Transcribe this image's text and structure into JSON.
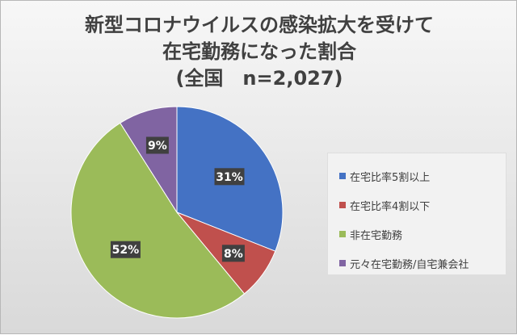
{
  "chart_data": {
    "type": "pie",
    "title_lines": [
      "新型コロナウイルスの感染拡大を受けて",
      "在宅勤務になった割合",
      "(全国　n=2,027)"
    ],
    "slices": [
      {
        "label": "在宅比率5割以上",
        "value": 31,
        "data_label": "31%",
        "color": "#4472c4"
      },
      {
        "label": "在宅比率4割以下",
        "value": 8,
        "data_label": "8%",
        "color": "#c0504d"
      },
      {
        "label": "非在宅勤務",
        "value": 52,
        "data_label": "52%",
        "color": "#9bbb59"
      },
      {
        "label": "元々在宅勤務/自宅兼会社",
        "value": 9,
        "data_label": "9%",
        "color": "#8064a2"
      }
    ],
    "start_angle_deg": 0,
    "direction": "clockwise",
    "legend_position": "right"
  }
}
